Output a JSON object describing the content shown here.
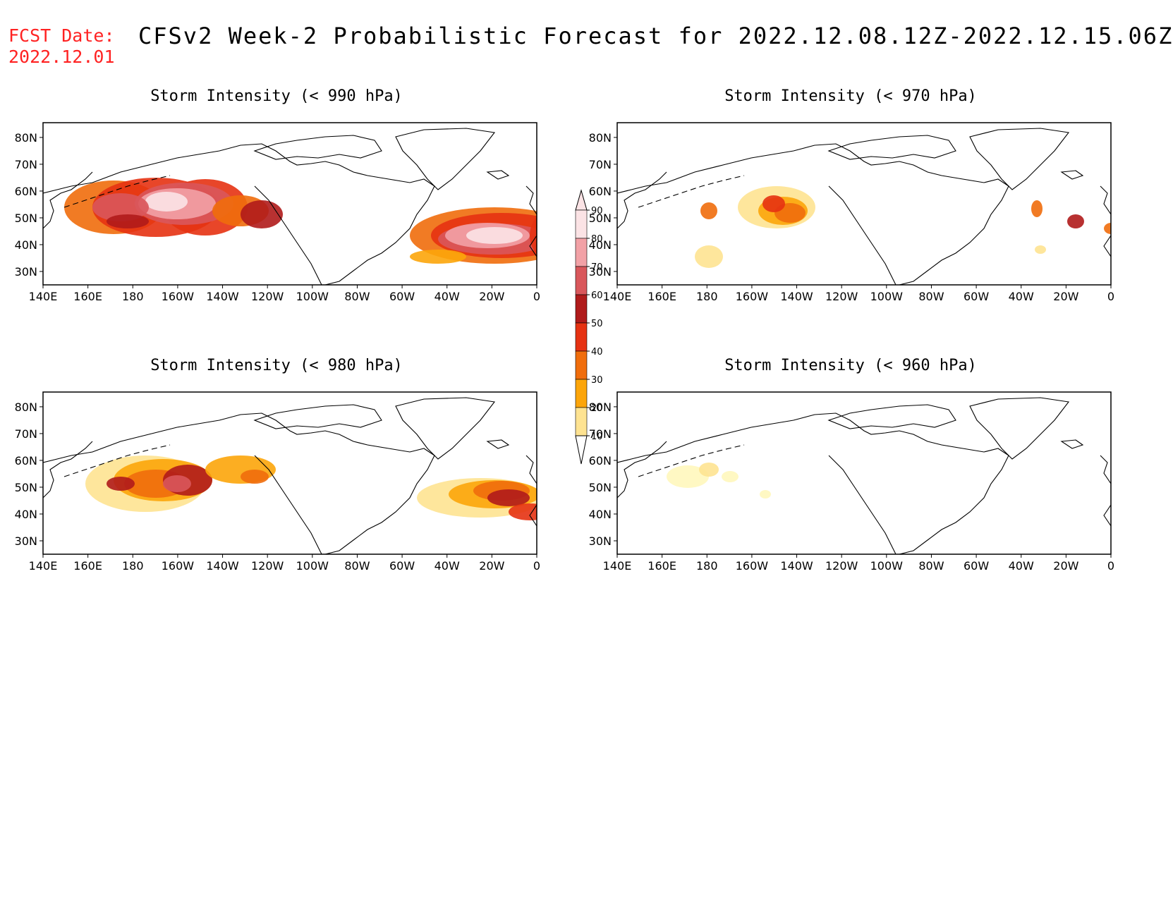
{
  "header": {
    "fcst_label": "FCST Date:",
    "fcst_date": "2022.12.01",
    "title": "CFSv2 Week-2 Probabilistic Forecast for 2022.12.08.12Z-2022.12.15.06Z"
  },
  "axes": {
    "lat_ticks": [
      "80N",
      "70N",
      "60N",
      "50N",
      "40N",
      "30N"
    ],
    "lon_ticks": [
      "140E",
      "160E",
      "180",
      "160W",
      "140W",
      "120W",
      "100W",
      "80W",
      "60W",
      "40W",
      "20W",
      "0"
    ]
  },
  "panels": [
    {
      "id": "p990",
      "title": "Storm Intensity (< 990 hPa)"
    },
    {
      "id": "p970",
      "title": "Storm Intensity (< 970 hPa)"
    },
    {
      "id": "p980",
      "title": "Storm Intensity (< 980 hPa)"
    },
    {
      "id": "p960",
      "title": "Storm Intensity (< 960 hPa)"
    }
  ],
  "colorbar": {
    "levels": [
      "10",
      "20",
      "30",
      "40",
      "50",
      "60",
      "70",
      "80",
      "90"
    ],
    "colors": [
      "#fff7bc",
      "#fee391",
      "#fca50a",
      "#f06d0c",
      "#e63212",
      "#b01b1b",
      "#d9575b",
      "#f2a1a6",
      "#fbe3e5"
    ]
  },
  "colors": {
    "header_red": "#ff2222",
    "coast": "#000000"
  }
}
